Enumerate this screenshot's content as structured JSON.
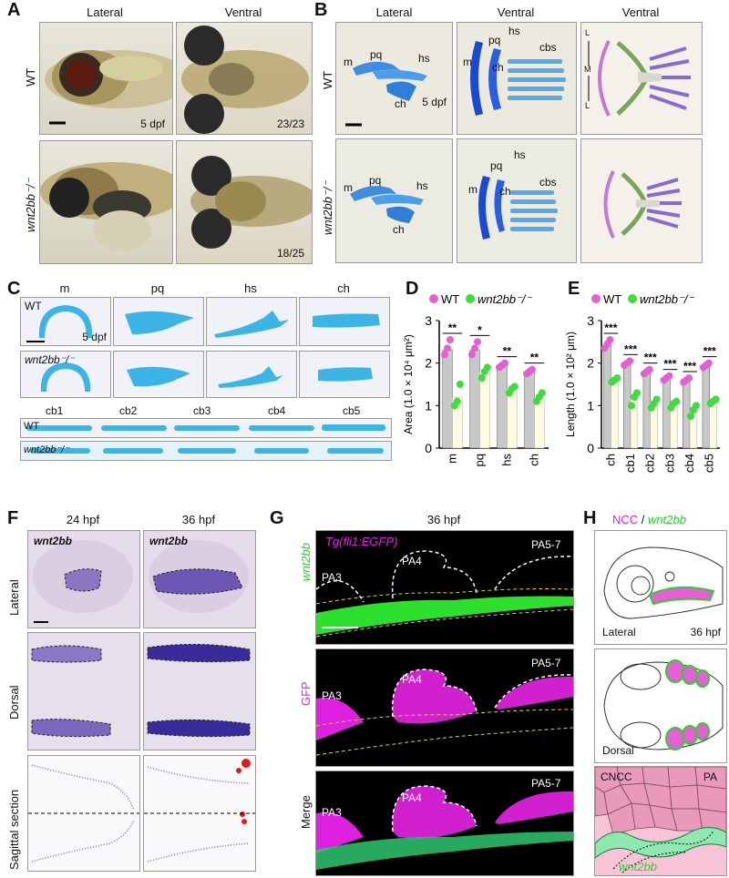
{
  "panels": {
    "A": {
      "letter": "A",
      "col_lateral": "Lateral",
      "col_ventral": "Ventral",
      "row_wt": "WT",
      "row_mut": "wnt2bb⁻/⁻",
      "stage": "5 dpf",
      "count_wt": "23/23",
      "count_mut": "18/25"
    },
    "B": {
      "letter": "B",
      "col_lateral": "Lateral",
      "col_ventral1": "Ventral",
      "col_ventral2": "Ventral",
      "row_wt": "WT",
      "row_mut": "wnt2bb⁻/⁻",
      "stage": "5 dpf",
      "m": "m",
      "pq": "pq",
      "hs": "hs",
      "ch": "ch",
      "cbs": "cbs",
      "axis_L1": "L",
      "axis_M": "M",
      "axis_L2": "L"
    },
    "C": {
      "letter": "C",
      "cols": [
        "m",
        "pq",
        "hs",
        "ch"
      ],
      "row_wt": "WT",
      "row_mut": "wnt2bb⁻/⁻",
      "stage": "5 dpf",
      "cb_cols": [
        "cb1",
        "cb2",
        "cb3",
        "cb4",
        "cb5"
      ]
    },
    "D": {
      "letter": "D",
      "legend_wt": "WT",
      "legend_mut": "wnt2bb⁻/⁻"
    },
    "E": {
      "letter": "E",
      "legend_wt": "WT",
      "legend_mut": "wnt2bb⁻/⁻"
    },
    "F": {
      "letter": "F",
      "col1": "24 hpf",
      "col2": "36 hpf",
      "gene": "wnt2bb",
      "row1": "Lateral",
      "row2": "Dorsal",
      "row3": "Sagittal section"
    },
    "G": {
      "letter": "G",
      "stage": "36 hpf",
      "transgene": "Tg(fli1:EGFP)",
      "side_gene": "wnt2bb",
      "side_gfp": "GFP",
      "side_merge": "Merge",
      "pa3": "PA3",
      "pa4": "PA4",
      "pa57": "PA5-7"
    },
    "H": {
      "letter": "H",
      "title_ncc": "NCC",
      "title_sep": " / ",
      "title_gene": "wnt2bb",
      "lateral": "Lateral",
      "stage": "36 hpf",
      "dorsal": "Dorsal",
      "cncc": "CNCC",
      "pa": "PA",
      "gene_label": "wnt2bb"
    }
  },
  "chart_data": [
    {
      "type": "bar",
      "panel": "D",
      "ylabel": "Area (1.0 × 10⁴ μm²)",
      "ylim": [
        0,
        3
      ],
      "yticks": [
        "0",
        "1",
        "2",
        "3"
      ],
      "categories": [
        "m",
        "pq",
        "hs",
        "ch"
      ],
      "series": [
        {
          "name": "WT",
          "values": [
            2.3,
            2.3,
            1.95,
            1.8
          ]
        },
        {
          "name": "wnt2bb⁻/⁻",
          "values": [
            1.2,
            1.8,
            1.4,
            1.2
          ]
        }
      ],
      "points": {
        "WT": [
          [
            2.2,
            2.35,
            2.55
          ],
          [
            2.2,
            2.35,
            2.5
          ],
          [
            1.9,
            1.95,
            2.0
          ],
          [
            1.75,
            1.8,
            1.85
          ]
        ],
        "wnt2bb⁻/⁻": [
          [
            1.0,
            1.1,
            1.5
          ],
          [
            1.65,
            1.8,
            1.9
          ],
          [
            1.3,
            1.4,
            1.45
          ],
          [
            1.1,
            1.2,
            1.3
          ]
        ]
      },
      "significance": [
        "**",
        "*",
        "**",
        "**"
      ],
      "colors": {
        "WT": "#e45fd1",
        "wnt2bb⁻/⁻": "#3fdb3f",
        "bar_wt": "#c8c8c8",
        "bar_mut": "#fffbe0"
      }
    },
    {
      "type": "bar",
      "panel": "E",
      "ylabel": "Length (1.0 × 10² μm)",
      "ylim": [
        0,
        3
      ],
      "yticks": [
        "0",
        "1",
        "2",
        "3"
      ],
      "categories": [
        "ch",
        "cb1",
        "cb2",
        "cb3",
        "cb4",
        "cb5"
      ],
      "series": [
        {
          "name": "WT",
          "values": [
            2.45,
            2.0,
            1.8,
            1.65,
            1.6,
            1.95
          ]
        },
        {
          "name": "wnt2bb⁻/⁻",
          "values": [
            1.6,
            1.2,
            1.05,
            1.05,
            0.9,
            1.1
          ]
        }
      ],
      "points": {
        "WT": [
          [
            2.35,
            2.45,
            2.55
          ],
          [
            1.95,
            2.0,
            2.05
          ],
          [
            1.75,
            1.8,
            1.85
          ],
          [
            1.6,
            1.65,
            1.7
          ],
          [
            1.55,
            1.6,
            1.65
          ],
          [
            1.9,
            1.95,
            2.0
          ]
        ],
        "wnt2bb⁻/⁻": [
          [
            1.55,
            1.6,
            1.65
          ],
          [
            1.0,
            1.2,
            1.3
          ],
          [
            0.95,
            1.05,
            1.15
          ],
          [
            0.95,
            1.05,
            1.1
          ],
          [
            0.75,
            0.9,
            1.0
          ],
          [
            1.05,
            1.1,
            1.15
          ]
        ]
      },
      "significance": [
        "***",
        "***",
        "***",
        "***",
        "***",
        "***"
      ],
      "colors": {
        "WT": "#e45fd1",
        "wnt2bb⁻/⁻": "#3fdb3f",
        "bar_wt": "#c8c8c8",
        "bar_mut": "#fffbe0"
      }
    }
  ]
}
